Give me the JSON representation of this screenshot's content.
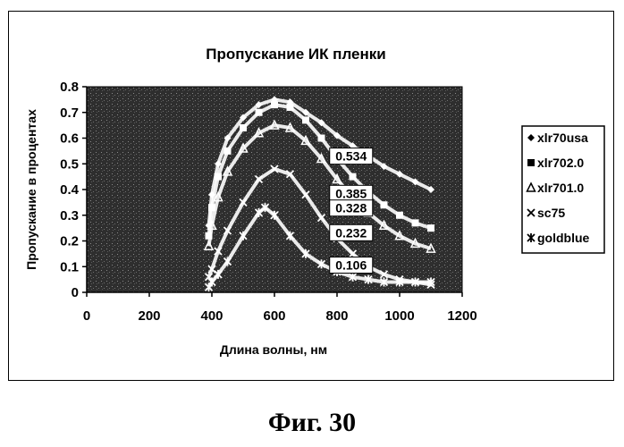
{
  "figure_caption": "Фиг. 30",
  "colors": {
    "plot_background": "#2e2e2e",
    "curve": "#ffffff",
    "callout_fill": "#ffffff",
    "callout_text": "#000000"
  },
  "chart_data": {
    "type": "scatter",
    "title": "Пропускание ИК пленки",
    "xlabel": "Длина волны, нм",
    "ylabel": "Пропускание в процентах",
    "xlim": [
      0,
      1200
    ],
    "ylim": [
      0,
      0.8
    ],
    "x_ticks": [
      "0",
      "200",
      "400",
      "600",
      "800",
      "1000",
      "1200"
    ],
    "y_ticks": [
      "0",
      "0.1",
      "0.2",
      "0.3",
      "0.4",
      "0.5",
      "0.6",
      "0.7",
      "0.8"
    ],
    "grid": false,
    "legend_position": "right",
    "series": [
      {
        "name": "xlr70usa",
        "marker": "diamond",
        "x": [
          390,
          400,
          420,
          450,
          500,
          550,
          600,
          650,
          700,
          750,
          800,
          850,
          900,
          950,
          1000,
          1050,
          1100
        ],
        "y": [
          0.26,
          0.38,
          0.5,
          0.6,
          0.68,
          0.73,
          0.75,
          0.74,
          0.7,
          0.66,
          0.61,
          0.57,
          0.53,
          0.49,
          0.46,
          0.43,
          0.4
        ]
      },
      {
        "name": "xlr702.0",
        "marker": "square",
        "x": [
          390,
          400,
          420,
          450,
          500,
          550,
          600,
          650,
          700,
          750,
          800,
          850,
          900,
          950,
          1000,
          1050,
          1100
        ],
        "y": [
          0.22,
          0.33,
          0.45,
          0.55,
          0.64,
          0.7,
          0.73,
          0.72,
          0.67,
          0.6,
          0.52,
          0.45,
          0.39,
          0.34,
          0.3,
          0.27,
          0.25
        ]
      },
      {
        "name": "xlr701.0",
        "marker": "triangle",
        "x": [
          390,
          400,
          420,
          450,
          500,
          550,
          600,
          650,
          700,
          750,
          800,
          850,
          900,
          950,
          1000,
          1050,
          1100
        ],
        "y": [
          0.18,
          0.26,
          0.37,
          0.47,
          0.56,
          0.62,
          0.65,
          0.64,
          0.59,
          0.52,
          0.44,
          0.37,
          0.31,
          0.26,
          0.22,
          0.19,
          0.17
        ]
      },
      {
        "name": "sc75",
        "marker": "x",
        "x": [
          390,
          400,
          420,
          450,
          500,
          550,
          600,
          650,
          700,
          750,
          800,
          850,
          900,
          950,
          1000,
          1050,
          1100
        ],
        "y": [
          0.06,
          0.09,
          0.16,
          0.24,
          0.35,
          0.44,
          0.48,
          0.46,
          0.38,
          0.29,
          0.21,
          0.15,
          0.1,
          0.07,
          0.05,
          0.04,
          0.03
        ]
      },
      {
        "name": "goldblue",
        "marker": "star",
        "x": [
          390,
          400,
          420,
          450,
          500,
          550,
          570,
          600,
          650,
          700,
          750,
          800,
          850,
          900,
          950,
          1000,
          1050,
          1100
        ],
        "y": [
          0.02,
          0.04,
          0.07,
          0.12,
          0.22,
          0.31,
          0.33,
          0.3,
          0.22,
          0.15,
          0.11,
          0.08,
          0.06,
          0.05,
          0.04,
          0.04,
          0.04,
          0.04
        ]
      }
    ],
    "annotations": [
      {
        "text": "0.534",
        "x": 845,
        "y": 0.53
      },
      {
        "text": "0.385",
        "x": 845,
        "y": 0.385
      },
      {
        "text": "0.328",
        "x": 845,
        "y": 0.328
      },
      {
        "text": "0.232",
        "x": 845,
        "y": 0.232
      },
      {
        "text": "0.106",
        "x": 845,
        "y": 0.106
      }
    ]
  }
}
